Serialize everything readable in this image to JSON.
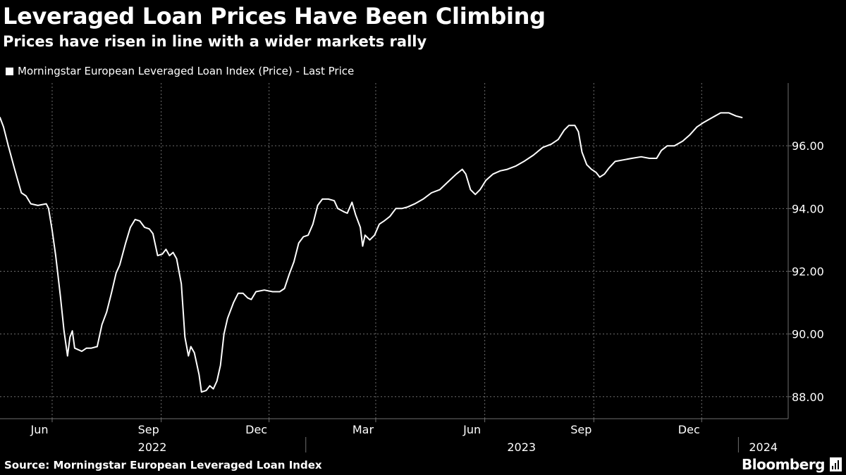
{
  "header": {
    "title": "Leveraged Loan Prices Have Been Climbing",
    "subtitle": "Prices have risen in line with a wider markets rally"
  },
  "footer": {
    "source": "Source: Morningstar European Leveraged Loan Index",
    "brand": "Bloomberg"
  },
  "colors": {
    "background": "#000000",
    "line": "#ffffff",
    "grid": "#6e6e6e",
    "text": "#ffffff"
  },
  "chart_data": {
    "type": "line",
    "title": "Leveraged Loan Prices Have Been Climbing",
    "subtitle": "Prices have risen in line with a wider markets rally",
    "xlabel": "",
    "ylabel": "",
    "ylim": [
      87.3,
      98.0
    ],
    "xlim": [
      "2022-04-18",
      "2024-02-12"
    ],
    "y_axis_side": "right",
    "y_ticks": [
      88,
      90,
      92,
      94,
      96
    ],
    "y_tick_labels": [
      "88.00",
      "90.00",
      "92.00",
      "94.00",
      "96.00"
    ],
    "x_ticks": [
      {
        "date": "2022-06-01",
        "label": "Jun"
      },
      {
        "date": "2022-09-01",
        "label": "Sep"
      },
      {
        "date": "2022-12-01",
        "label": "Dec"
      },
      {
        "date": "2023-03-01",
        "label": "Mar"
      },
      {
        "date": "2023-06-01",
        "label": "Jun"
      },
      {
        "date": "2023-09-01",
        "label": "Sep"
      },
      {
        "date": "2023-12-01",
        "label": "Dec"
      }
    ],
    "year_labels": [
      {
        "label": "2022",
        "start": "2022-01-01",
        "end": "2022-12-31"
      },
      {
        "label": "2023",
        "start": "2023-01-01",
        "end": "2023-12-31"
      },
      {
        "label": "2024",
        "start": "2024-01-01",
        "end": "2024-02-12"
      }
    ],
    "year_separators": [
      "2023-01-01",
      "2024-01-01"
    ],
    "grid": true,
    "legend_position": "top-left",
    "series": [
      {
        "name": "Morningstar European Leveraged Loan Index (Price) - Last Price",
        "points": [
          [
            "2022-04-18",
            96.9
          ],
          [
            "2022-04-21",
            96.6
          ],
          [
            "2022-04-25",
            96.0
          ],
          [
            "2022-04-30",
            95.3
          ],
          [
            "2022-05-03",
            94.9
          ],
          [
            "2022-05-06",
            94.5
          ],
          [
            "2022-05-10",
            94.4
          ],
          [
            "2022-05-14",
            94.15
          ],
          [
            "2022-05-20",
            94.1
          ],
          [
            "2022-05-27",
            94.15
          ],
          [
            "2022-05-29",
            94.0
          ],
          [
            "2022-06-01",
            93.3
          ],
          [
            "2022-06-04",
            92.5
          ],
          [
            "2022-06-08",
            91.2
          ],
          [
            "2022-06-11",
            90.1
          ],
          [
            "2022-06-14",
            89.3
          ],
          [
            "2022-06-16",
            89.9
          ],
          [
            "2022-06-18",
            90.1
          ],
          [
            "2022-06-20",
            89.55
          ],
          [
            "2022-06-26",
            89.45
          ],
          [
            "2022-06-30",
            89.55
          ],
          [
            "2022-07-04",
            89.55
          ],
          [
            "2022-07-09",
            89.6
          ],
          [
            "2022-07-13",
            90.3
          ],
          [
            "2022-07-17",
            90.7
          ],
          [
            "2022-07-21",
            91.3
          ],
          [
            "2022-07-25",
            91.95
          ],
          [
            "2022-07-28",
            92.2
          ],
          [
            "2022-08-02",
            92.9
          ],
          [
            "2022-08-06",
            93.4
          ],
          [
            "2022-08-10",
            93.65
          ],
          [
            "2022-08-14",
            93.6
          ],
          [
            "2022-08-18",
            93.4
          ],
          [
            "2022-08-22",
            93.35
          ],
          [
            "2022-08-25",
            93.2
          ],
          [
            "2022-08-29",
            92.5
          ],
          [
            "2022-09-02",
            92.55
          ],
          [
            "2022-09-05",
            92.7
          ],
          [
            "2022-09-08",
            92.5
          ],
          [
            "2022-09-11",
            92.6
          ],
          [
            "2022-09-14",
            92.4
          ],
          [
            "2022-09-18",
            91.6
          ],
          [
            "2022-09-21",
            89.9
          ],
          [
            "2022-09-24",
            89.3
          ],
          [
            "2022-09-26",
            89.6
          ],
          [
            "2022-09-29",
            89.4
          ],
          [
            "2022-10-03",
            88.7
          ],
          [
            "2022-10-05",
            88.15
          ],
          [
            "2022-10-09",
            88.2
          ],
          [
            "2022-10-12",
            88.35
          ],
          [
            "2022-10-15",
            88.25
          ],
          [
            "2022-10-18",
            88.5
          ],
          [
            "2022-10-21",
            89.0
          ],
          [
            "2022-10-24",
            90.0
          ],
          [
            "2022-10-27",
            90.5
          ],
          [
            "2022-11-01",
            91.0
          ],
          [
            "2022-11-05",
            91.3
          ],
          [
            "2022-11-09",
            91.3
          ],
          [
            "2022-11-13",
            91.15
          ],
          [
            "2022-11-16",
            91.1
          ],
          [
            "2022-11-20",
            91.35
          ],
          [
            "2022-11-27",
            91.4
          ],
          [
            "2022-12-04",
            91.35
          ],
          [
            "2022-12-10",
            91.35
          ],
          [
            "2022-12-14",
            91.45
          ],
          [
            "2022-12-18",
            91.9
          ],
          [
            "2022-12-22",
            92.3
          ],
          [
            "2022-12-26",
            92.9
          ],
          [
            "2022-12-30",
            93.1
          ],
          [
            "2023-01-03",
            93.15
          ],
          [
            "2023-01-07",
            93.5
          ],
          [
            "2023-01-11",
            94.1
          ],
          [
            "2023-01-15",
            94.3
          ],
          [
            "2023-01-20",
            94.3
          ],
          [
            "2023-01-25",
            94.25
          ],
          [
            "2023-01-28",
            94.0
          ],
          [
            "2023-02-02",
            93.9
          ],
          [
            "2023-02-05",
            93.85
          ],
          [
            "2023-02-09",
            94.2
          ],
          [
            "2023-02-12",
            93.8
          ],
          [
            "2023-02-16",
            93.4
          ],
          [
            "2023-02-18",
            92.8
          ],
          [
            "2023-02-20",
            93.15
          ],
          [
            "2023-02-24",
            93.0
          ],
          [
            "2023-02-28",
            93.15
          ],
          [
            "2023-03-04",
            93.5
          ],
          [
            "2023-03-08",
            93.6
          ],
          [
            "2023-03-13",
            93.75
          ],
          [
            "2023-03-18",
            94.0
          ],
          [
            "2023-03-23",
            94.0
          ],
          [
            "2023-03-28",
            94.05
          ],
          [
            "2023-04-03",
            94.15
          ],
          [
            "2023-04-10",
            94.3
          ],
          [
            "2023-04-17",
            94.5
          ],
          [
            "2023-04-24",
            94.6
          ],
          [
            "2023-05-01",
            94.85
          ],
          [
            "2023-05-08",
            95.1
          ],
          [
            "2023-05-13",
            95.25
          ],
          [
            "2023-05-16",
            95.1
          ],
          [
            "2023-05-20",
            94.6
          ],
          [
            "2023-05-24",
            94.45
          ],
          [
            "2023-05-28",
            94.6
          ],
          [
            "2023-06-02",
            94.9
          ],
          [
            "2023-06-08",
            95.1
          ],
          [
            "2023-06-14",
            95.2
          ],
          [
            "2023-06-20",
            95.25
          ],
          [
            "2023-06-27",
            95.35
          ],
          [
            "2023-07-04",
            95.5
          ],
          [
            "2023-07-12",
            95.7
          ],
          [
            "2023-07-20",
            95.95
          ],
          [
            "2023-07-27",
            96.05
          ],
          [
            "2023-08-02",
            96.2
          ],
          [
            "2023-08-07",
            96.5
          ],
          [
            "2023-08-11",
            96.65
          ],
          [
            "2023-08-16",
            96.65
          ],
          [
            "2023-08-19",
            96.45
          ],
          [
            "2023-08-22",
            95.8
          ],
          [
            "2023-08-26",
            95.4
          ],
          [
            "2023-08-30",
            95.25
          ],
          [
            "2023-09-03",
            95.15
          ],
          [
            "2023-09-06",
            95.0
          ],
          [
            "2023-09-10",
            95.1
          ],
          [
            "2023-09-14",
            95.3
          ],
          [
            "2023-09-19",
            95.5
          ],
          [
            "2023-09-26",
            95.55
          ],
          [
            "2023-10-03",
            95.6
          ],
          [
            "2023-10-11",
            95.65
          ],
          [
            "2023-10-18",
            95.6
          ],
          [
            "2023-10-24",
            95.6
          ],
          [
            "2023-10-28",
            95.85
          ],
          [
            "2023-11-02",
            96.0
          ],
          [
            "2023-11-08",
            96.0
          ],
          [
            "2023-11-15",
            96.15
          ],
          [
            "2023-11-21",
            96.35
          ],
          [
            "2023-11-27",
            96.6
          ],
          [
            "2023-12-03",
            96.75
          ],
          [
            "2023-12-10",
            96.9
          ],
          [
            "2023-12-17",
            97.05
          ],
          [
            "2023-12-24",
            97.05
          ],
          [
            "2023-12-30",
            96.95
          ],
          [
            "2024-01-04",
            96.9
          ]
        ]
      }
    ]
  }
}
